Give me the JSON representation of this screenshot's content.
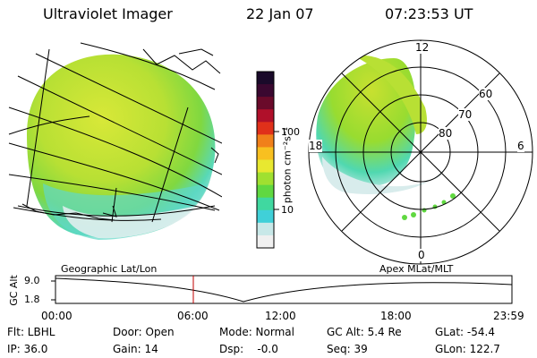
{
  "header": {
    "title": "Ultraviolet Imager",
    "date": "22 Jan 07",
    "time": "07:23:53 UT"
  },
  "colorbar": {
    "unit_label": "photon cm⁻²s⁻¹",
    "ticks": [
      "100",
      "10"
    ],
    "colors": [
      "#1a0a2a",
      "#3a0830",
      "#6a0a2a",
      "#b0102a",
      "#e0301a",
      "#f0801a",
      "#f8c020",
      "#e8e830",
      "#a0e030",
      "#60d840",
      "#40d8a0",
      "#40d0d8",
      "#c8e8e8",
      "#f0f0f0"
    ]
  },
  "polar_plot": {
    "mlt_labels": {
      "top": "12",
      "left": "18",
      "right": "6",
      "bottom": "0"
    },
    "lat_labels": [
      "60",
      "70",
      "80"
    ]
  },
  "timeline": {
    "y_axis_label": "GC Alt",
    "left_caption": "Geographic Lat/Lon",
    "right_caption": "Apex  MLat/MLT",
    "ytick_top": "9.0",
    "ytick_bottom": "1.8",
    "time_ticks": [
      "00:00",
      "06:00",
      "12:00",
      "18:00",
      "23:59"
    ],
    "marker_time": "07:23:53"
  },
  "footer": {
    "col1": [
      "Flt: LBHL",
      "IP: 36.0"
    ],
    "col2": [
      "Door: Open",
      "Gain: 14"
    ],
    "col3": [
      "Mode: Normal",
      "Dsp:    -0.0"
    ],
    "col4": [
      "GC Alt: 5.4 Re",
      "Seq: 39"
    ],
    "col5": [
      "GLat: -54.4",
      "GLon: 122.7"
    ]
  }
}
